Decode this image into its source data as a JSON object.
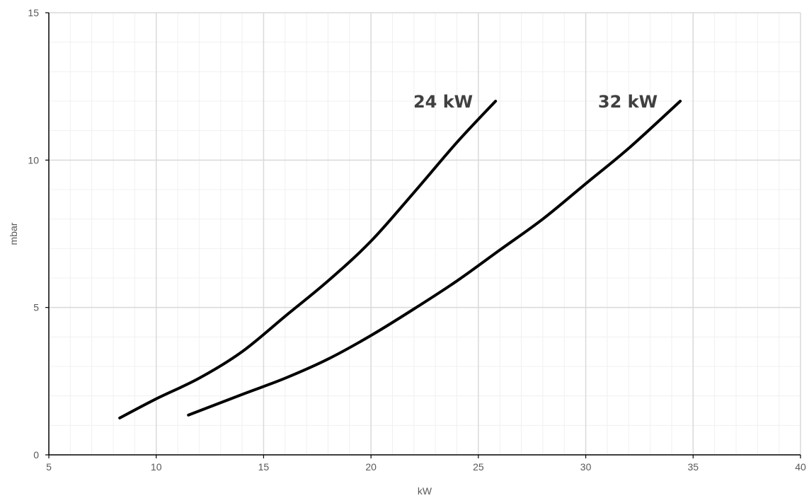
{
  "chart_data": {
    "type": "line",
    "xlabel": "kW",
    "ylabel": "mbar",
    "xlim": [
      5,
      40
    ],
    "ylim": [
      0,
      15
    ],
    "x_ticks": [
      5,
      10,
      15,
      20,
      25,
      30,
      35,
      40
    ],
    "y_ticks": [
      0,
      5,
      10,
      15
    ],
    "grid": true,
    "minor_grid": true,
    "line_color": "#000000",
    "series": [
      {
        "name": "24 kW",
        "x": [
          8.3,
          10,
          12,
          14,
          16,
          18,
          20,
          22,
          24,
          25.8
        ],
        "y": [
          1.25,
          1.9,
          2.6,
          3.5,
          4.7,
          5.9,
          7.25,
          8.9,
          10.6,
          12.0
        ]
      },
      {
        "name": "32 kW",
        "x": [
          11.5,
          14,
          16,
          18,
          20,
          22,
          24,
          26,
          28,
          30,
          32,
          34.4
        ],
        "y": [
          1.35,
          2.05,
          2.6,
          3.25,
          4.05,
          4.95,
          5.9,
          6.95,
          8.0,
          9.2,
          10.4,
          12.0
        ]
      }
    ]
  }
}
